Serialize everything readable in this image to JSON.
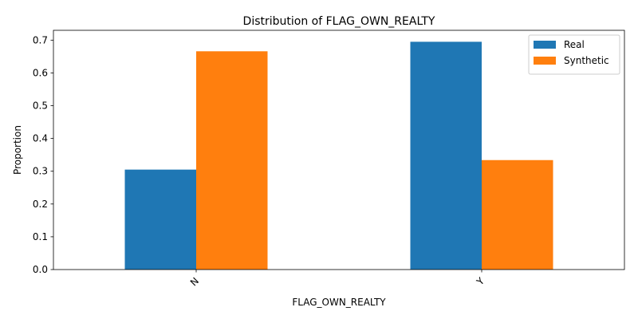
{
  "chart_data": {
    "type": "bar",
    "title": "Distribution of FLAG_OWN_REALTY",
    "xlabel": "FLAG_OWN_REALTY",
    "ylabel": "Proportion",
    "categories": [
      "N",
      "Y"
    ],
    "series": [
      {
        "name": "Real",
        "color": "#1f77b4",
        "values": [
          0.305,
          0.695
        ]
      },
      {
        "name": "Synthetic",
        "color": "#ff7f0e",
        "values": [
          0.666,
          0.334
        ]
      }
    ],
    "ylim": [
      0,
      0.73
    ],
    "yticks": [
      0.0,
      0.1,
      0.2,
      0.3,
      0.4,
      0.5,
      0.6,
      0.7
    ],
    "ytick_labels": [
      "0.0",
      "0.1",
      "0.2",
      "0.3",
      "0.4",
      "0.5",
      "0.6",
      "0.7"
    ],
    "grid": false,
    "legend_position": "top-right",
    "xtick_rotation": 45
  }
}
